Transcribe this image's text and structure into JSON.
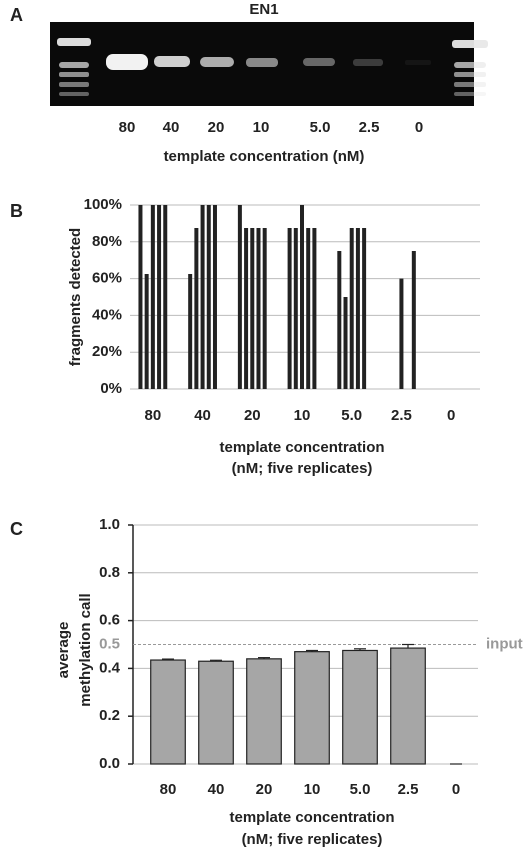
{
  "chart_data": [
    {
      "type": "gel",
      "panel_label": "A",
      "title": "EN1",
      "categories": [
        "80",
        "40",
        "20",
        "10",
        "5.0",
        "2.5",
        "0"
      ],
      "x_label": [
        "template concentration (nM)"
      ]
    },
    {
      "type": "grouped_bar",
      "panel_label": "B",
      "categories": [
        "80",
        "40",
        "20",
        "10",
        "5.0",
        "2.5",
        "0"
      ],
      "values": [
        [
          100,
          62.5,
          100,
          100,
          100
        ],
        [
          62.5,
          87.5,
          100,
          100,
          100
        ],
        [
          100,
          87.5,
          87.5,
          87.5,
          87.5
        ],
        [
          87.5,
          87.5,
          100,
          87.5,
          87.5
        ],
        [
          75,
          50,
          87.5,
          87.5,
          87.5
        ],
        [
          0,
          0,
          60,
          0,
          75
        ],
        [
          0,
          0,
          0,
          0,
          0
        ]
      ],
      "color": "#222222",
      "ylim": [
        0,
        100
      ],
      "yticks": [
        {
          "value": 0,
          "label": "0%"
        },
        {
          "value": 20,
          "label": "20%"
        },
        {
          "value": 40,
          "label": "40%"
        },
        {
          "value": 60,
          "label": "60%"
        },
        {
          "value": 80,
          "label": "80%"
        },
        {
          "value": 100,
          "label": "100%"
        }
      ],
      "grid": true,
      "y_label": [
        "fragments detected"
      ],
      "x_label": [
        "template concentration",
        "(nM; five replicates)"
      ]
    },
    {
      "type": "bar",
      "panel_label": "C",
      "categories": [
        "80",
        "40",
        "20",
        "10",
        "5.0",
        "2.5",
        "0"
      ],
      "values": [
        0.435,
        0.43,
        0.44,
        0.47,
        0.475,
        0.485,
        0.0
      ],
      "errors": [
        0.004,
        0.004,
        0.005,
        0.005,
        0.007,
        0.015,
        0.0
      ],
      "color": "#a6a6a6",
      "ylim": [
        0,
        1.0
      ],
      "yticks": [
        {
          "value": 0,
          "label": "0.0"
        },
        {
          "value": 0.2,
          "label": "0.2"
        },
        {
          "value": 0.4,
          "label": "0.4"
        },
        {
          "value": 0.6,
          "label": "0.6"
        },
        {
          "value": 0.8,
          "label": "0.8"
        },
        {
          "value": 1.0,
          "label": "1.0"
        }
      ],
      "grid": true,
      "reference": {
        "value": 0.5,
        "label": "0.5",
        "annotation": "input"
      },
      "y_label": [
        "average",
        "methylation call"
      ],
      "x_label": [
        "template concentration",
        "(nM; five replicates)"
      ]
    }
  ]
}
